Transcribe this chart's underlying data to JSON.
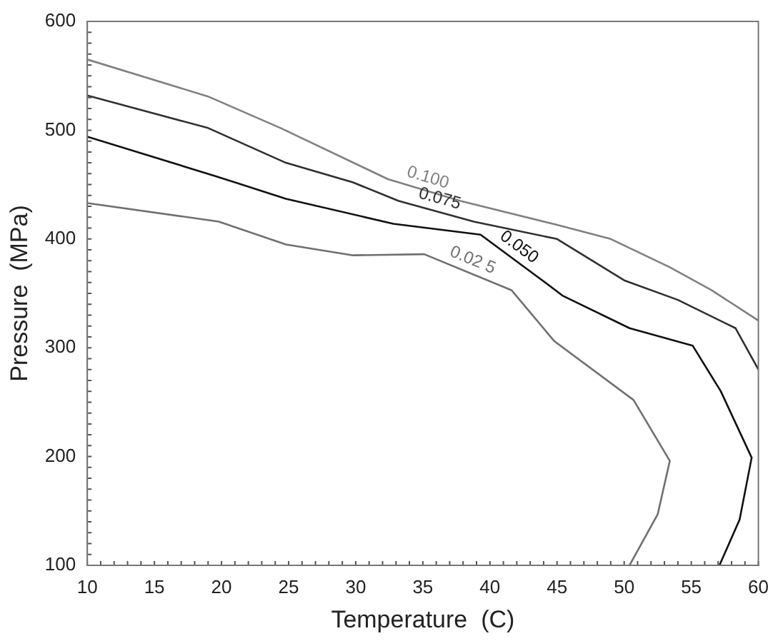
{
  "chart_data": {
    "type": "line",
    "xlabel": "Temperature  (C)",
    "ylabel": "Pressure  (MPa)",
    "xlim": [
      10,
      60
    ],
    "xticks": [
      10,
      15,
      20,
      25,
      30,
      35,
      40,
      45,
      50,
      55,
      60
    ],
    "ylim": [
      100,
      600
    ],
    "yticks": [
      100,
      200,
      300,
      400,
      500,
      600
    ],
    "grid": false,
    "legend": false,
    "marker": "none",
    "line_style": "solid",
    "series": [
      {
        "name": "0.100",
        "color": "#808080",
        "x": [
          10,
          19,
          24.4,
          32.4,
          37.8,
          45,
          49,
          53.4,
          56.5,
          60
        ],
        "values": [
          565,
          531,
          502,
          455,
          435,
          413,
          400,
          374,
          353,
          325
        ]
      },
      {
        "name": "0.075",
        "color": "#303030",
        "x": [
          10,
          19,
          24.8,
          29.8,
          33.2,
          38.8,
          45,
          50,
          54,
          58.3,
          60
        ],
        "values": [
          532,
          502,
          470,
          452,
          435,
          416,
          400,
          362,
          344,
          318,
          280
        ]
      },
      {
        "name": "0.050",
        "color": "#101010",
        "x": [
          10,
          19.5,
          24.8,
          32.8,
          39.3,
          43.9,
          45.4,
          50.4,
          55.1,
          57.2,
          59.5,
          58.6,
          57.1
        ],
        "values": [
          494,
          458,
          437,
          414,
          404,
          362,
          348,
          318,
          302,
          260,
          199,
          142,
          100
        ]
      },
      {
        "name": "0.02 5",
        "color": "#707070",
        "x": [
          10,
          19.8,
          24.8,
          29.8,
          35.1,
          41.6,
          44.8,
          50.7,
          53.4,
          52.5,
          50.4
        ],
        "values": [
          433,
          416,
          395,
          385,
          386,
          353,
          306,
          252,
          196,
          147,
          100
        ]
      }
    ]
  }
}
